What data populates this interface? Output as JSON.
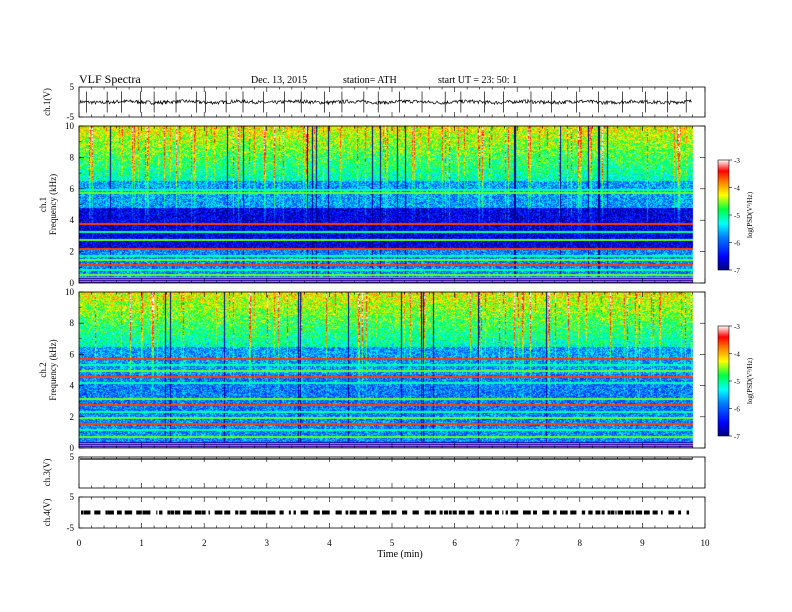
{
  "header": {
    "title": "VLF  Spectra",
    "date": "Dec. 13,  2015",
    "station": "station= ATH",
    "start": "start  UT  =    23: 50: 1"
  },
  "chart_data": [
    {
      "type": "line",
      "channel": "ch.1",
      "ylabel": "ch.1(V)",
      "ylim": [
        -5,
        5
      ],
      "y_ticks": [
        "5",
        "-5"
      ],
      "x_unit": "min",
      "xlim": [
        0,
        10
      ],
      "data_end_min": 9.8,
      "baseline_v": 0.0,
      "noise_amplitude_v": 1.0,
      "spikes_min": [
        0.12,
        0.45,
        0.68,
        0.98,
        1.2,
        1.55,
        1.88,
        2.02,
        2.35,
        2.62,
        2.95,
        3.28,
        3.55,
        3.92,
        4.2,
        4.55,
        4.78,
        5.12,
        5.48,
        5.85,
        6.1,
        6.48,
        6.78,
        7.22,
        7.55,
        7.95,
        8.3,
        8.68,
        9.05,
        9.4,
        9.7
      ]
    },
    {
      "type": "heatmap",
      "channel": "ch.1",
      "ylabel": "ch.1\nFrequency  (kHz)",
      "ylim": [
        0,
        10
      ],
      "y_ticks": [
        "0",
        "2",
        "4",
        "6",
        "8",
        "10"
      ],
      "xlim": [
        0,
        10
      ],
      "data_end_min": 9.8,
      "colorbar": {
        "label": "log(PSD(V²/Hz)",
        "range": [
          -7,
          -3
        ],
        "ticks": [
          "-3",
          "-4",
          "-5",
          "-6",
          "-7"
        ]
      },
      "strong_lines_khz": [
        0.3,
        0.6,
        0.9,
        1.2,
        1.5,
        1.8,
        2.2,
        2.8,
        3.3,
        3.8,
        5.8,
        6.0
      ]
    },
    {
      "type": "heatmap",
      "channel": "ch.2",
      "ylabel": "ch.2\nFrequency  (kHz)",
      "ylim": [
        0,
        10
      ],
      "y_ticks": [
        "0",
        "2",
        "4",
        "6",
        "8",
        "10"
      ],
      "xlim": [
        0,
        10
      ],
      "data_end_min": 9.8,
      "colorbar": {
        "label": "log(PSD(V²/Hz)",
        "range": [
          -7,
          -3
        ],
        "ticks": [
          "-3",
          "-4",
          "-5",
          "-6",
          "-7"
        ]
      },
      "strong_lines_khz": [
        0.4,
        0.8,
        1.2,
        1.6,
        2.0,
        2.4,
        2.8,
        3.2,
        4.2,
        4.6,
        5.0,
        5.4,
        5.8
      ]
    },
    {
      "type": "line",
      "channel": "ch.3",
      "ylabel": "ch.3(V)",
      "ylim": [
        -5,
        5
      ],
      "y_ticks": [
        "5"
      ],
      "xlim": [
        0,
        10
      ],
      "data_end_min": 9.8,
      "level_v": 5.0
    },
    {
      "type": "line",
      "channel": "ch.4",
      "ylabel": "ch.4(V)",
      "ylim": [
        -5,
        5
      ],
      "y_ticks": [
        "5",
        "-5"
      ],
      "xlim": [
        0,
        10
      ],
      "data_end_min": 9.8,
      "level_v": 0.0,
      "xlabel": "Time  (min)",
      "x_ticks": [
        "0",
        "1",
        "2",
        "3",
        "4",
        "5",
        "6",
        "7",
        "8",
        "9",
        "10"
      ]
    }
  ]
}
